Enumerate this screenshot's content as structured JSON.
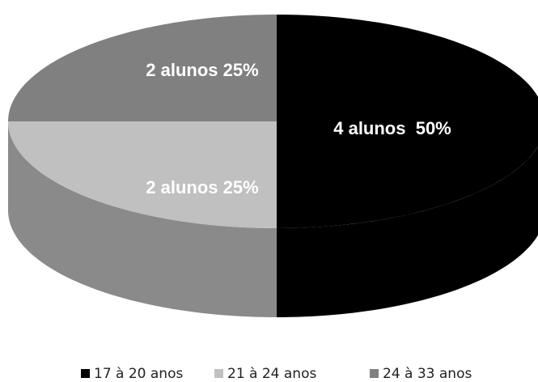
{
  "chart_data": {
    "type": "pie",
    "three_d": true,
    "categories": [
      "17 à 20 anos",
      "21 à 24 anos",
      "24 à 33 anos"
    ],
    "values": [
      50,
      25,
      25
    ],
    "value_labels": [
      "4 alunos  50%",
      "2 alunos 25%",
      "2 alunos 25%"
    ],
    "colors": [
      "#000000",
      "#c0c0c0",
      "#808080"
    ],
    "legend": "bottom"
  }
}
